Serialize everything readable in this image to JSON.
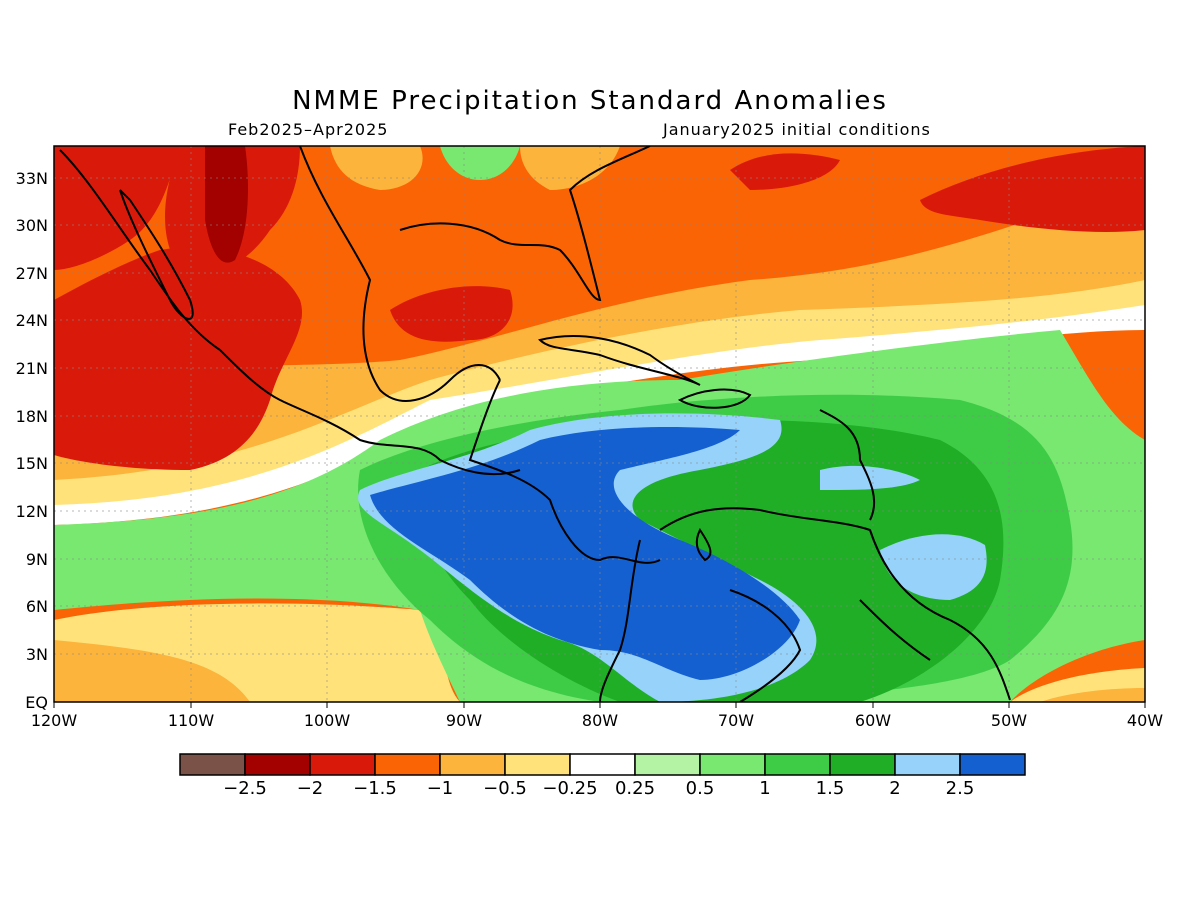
{
  "title": "NMME Precipitation Standard Anomalies",
  "period": "Feb2025–Apr2025",
  "init": "January2025 initial conditions",
  "lat_labels": [
    "33N",
    "30N",
    "27N",
    "24N",
    "21N",
    "18N",
    "15N",
    "12N",
    "9N",
    "6N",
    "3N",
    "EQ"
  ],
  "lon_labels": [
    "120W",
    "110W",
    "100W",
    "90W",
    "80W",
    "70W",
    "60W",
    "50W",
    "40W"
  ],
  "colorbar": {
    "colors": [
      "#7a5248",
      "#a30000",
      "#d91a0b",
      "#fa6405",
      "#fcb43c",
      "#ffe37a",
      "#ffffff",
      "#b4f3a4",
      "#78e870",
      "#3ecc46",
      "#1fae26",
      "#96d2fa",
      "#1560d0"
    ],
    "labels": [
      "-2.5",
      "-2",
      "-1.5",
      "-1",
      "-0.5",
      "-0.25",
      "0.25",
      "0.5",
      "1",
      "1.5",
      "2",
      "2.5"
    ]
  }
}
